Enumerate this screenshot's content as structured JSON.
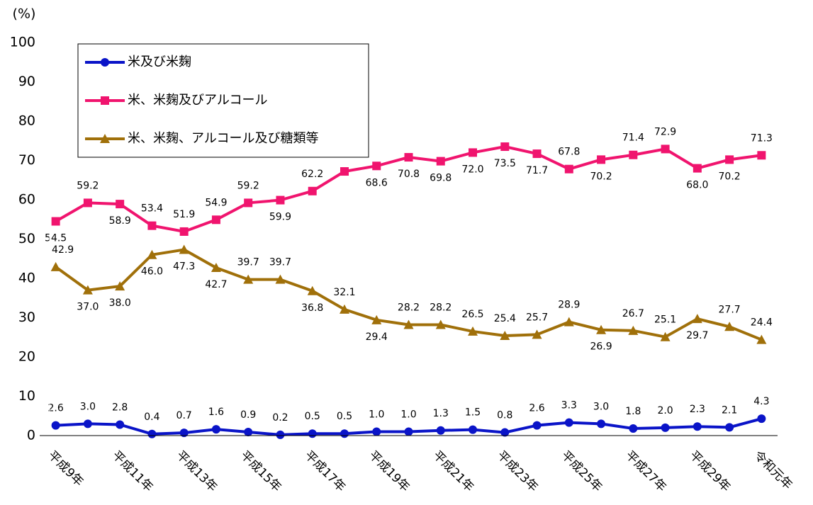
{
  "chart_data": {
    "type": "line",
    "ylabel": "(%)",
    "categories": [
      "平成9年",
      null,
      "平成11年",
      null,
      "平成13年",
      null,
      "平成15年",
      null,
      "平成17年",
      null,
      "平成19年",
      null,
      "平成21年",
      null,
      "平成23年",
      null,
      "平成25年",
      null,
      "平成27年",
      null,
      "平成29年",
      null,
      "令和元年"
    ],
    "ylim": [
      0,
      100
    ],
    "yticks": [
      0,
      10,
      20,
      30,
      40,
      50,
      60,
      70,
      80,
      90,
      100
    ],
    "grid": false,
    "legend": "upper left",
    "series": [
      {
        "name": "米及び米麹",
        "color": "#0a14c8",
        "marker": "circle",
        "values": [
          2.6,
          3.0,
          2.8,
          0.4,
          0.7,
          1.6,
          0.9,
          0.2,
          0.5,
          0.5,
          1.0,
          1.0,
          1.3,
          1.5,
          0.8,
          2.6,
          3.3,
          3.0,
          1.8,
          2.0,
          2.3,
          2.1,
          4.3
        ],
        "value_labels": [
          "2.6",
          "3.0",
          "2.8",
          "0.4",
          "0.7",
          "1.6",
          "0.9",
          "0.2",
          "0.5",
          "0.5",
          "1.0",
          "1.0",
          "1.3",
          "1.5",
          "0.8",
          "2.6",
          "3.3",
          "3.0",
          "1.8",
          "2.0",
          "2.3",
          "2.1",
          "4.3"
        ]
      },
      {
        "name": "米、米麹及びアルコール",
        "color": "#f0146e",
        "marker": "square",
        "values": [
          54.5,
          59.2,
          58.9,
          53.4,
          51.9,
          54.9,
          59.2,
          59.9,
          62.2,
          67.2,
          68.6,
          70.8,
          69.8,
          72.0,
          73.5,
          71.7,
          67.8,
          70.2,
          71.4,
          72.9,
          68.0,
          70.2,
          71.3
        ],
        "value_labels": [
          "54.5",
          "59.2",
          "58.9",
          "53.4",
          "51.9",
          "54.9",
          "59.2",
          "59.9",
          "62.2",
          "67.2",
          "68.6",
          "70.8",
          "69.8",
          "72.0",
          "73.5",
          "71.7",
          "67.8",
          "70.2",
          "71.4",
          "72.9",
          "68.0",
          "70.2",
          "71.3"
        ]
      },
      {
        "name": "米、米麹、アルコール及び糖類等",
        "color": "#a0700a",
        "marker": "triangle",
        "values": [
          42.9,
          37.0,
          38.0,
          46.0,
          47.3,
          42.7,
          39.7,
          39.7,
          36.8,
          32.1,
          29.4,
          28.2,
          28.2,
          26.5,
          25.4,
          25.7,
          28.9,
          26.9,
          26.7,
          25.1,
          29.7,
          27.7,
          24.4
        ],
        "value_labels": [
          "42.9",
          "37.0",
          "38.0",
          "46.0",
          "47.3",
          "42.7",
          "39.7",
          "39.7",
          "36.8",
          "32.1",
          "29.4",
          "28.2",
          "28.2",
          "26.5",
          "25.4",
          "25.7",
          "28.9",
          "26.9",
          "26.7",
          "25.1",
          "29.7",
          "27.7",
          "24.4"
        ]
      }
    ]
  }
}
